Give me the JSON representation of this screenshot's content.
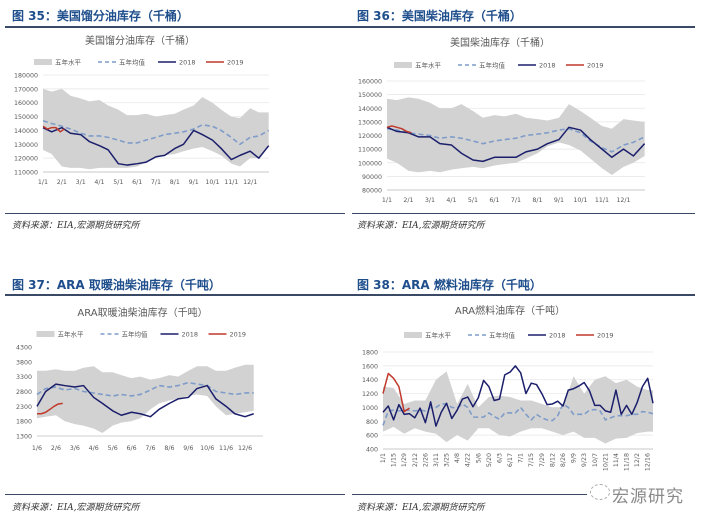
{
  "headers": [
    "图 35：美国馏分油库存（千桶）",
    "图 36：美国柴油库存（千桶）",
    "图 37：ARA 取暖油柴油库存（千吨）",
    "图 38：ARA 燃料油库存（千吨）"
  ],
  "source": "资料来源：EIA,宏源期货研究所",
  "watermark": "宏源研究",
  "colors": {
    "band": "#d2d2d2",
    "avg": "#7f9cc9",
    "y2018": "#1b1f6b",
    "y2019": "#c0392b",
    "header": "#1f4e8c"
  },
  "chart_data": [
    {
      "type": "area+line",
      "title": "美国馏分油库存（千桶）",
      "legend": "top",
      "grid": true,
      "ylim": [
        110000,
        180000
      ],
      "y_ticks": [
        "110000",
        "120000",
        "130000",
        "140000",
        "150000",
        "160000",
        "170000",
        "180000"
      ],
      "x_ticks": [
        "1/1",
        "2/1",
        "3/1",
        "4/1",
        "5/1",
        "6/1",
        "7/1",
        "8/1",
        "9/1",
        "10/1",
        "11/1",
        "12/1"
      ],
      "x": [
        "1/1",
        "1/15",
        "2/1",
        "2/15",
        "3/1",
        "3/15",
        "4/1",
        "4/15",
        "5/1",
        "5/15",
        "6/1",
        "6/15",
        "7/1",
        "7/15",
        "8/1",
        "8/15",
        "9/1",
        "9/15",
        "10/1",
        "10/15",
        "11/1",
        "11/15",
        "12/1",
        "12/15",
        "12/31"
      ],
      "band": {
        "name": "五年水平",
        "upper": [
          170000,
          168000,
          170000,
          165000,
          163000,
          161000,
          162000,
          158000,
          155000,
          151000,
          151000,
          152000,
          150000,
          151000,
          152000,
          155000,
          158000,
          164000,
          160000,
          155000,
          150000,
          149000,
          156000,
          153000,
          153000
        ],
        "lower": [
          126000,
          123000,
          114000,
          113000,
          113000,
          112000,
          113000,
          113000,
          113000,
          113000,
          114000,
          117000,
          120000,
          122000,
          123000,
          125000,
          127000,
          128000,
          125000,
          122000,
          116000,
          114000,
          120000,
          120000,
          128000
        ]
      },
      "series": [
        {
          "name": "五年均值",
          "style": "dashed",
          "values": [
            147000,
            145000,
            143000,
            141000,
            138000,
            136000,
            136000,
            135000,
            133000,
            131000,
            131000,
            133000,
            135000,
            137000,
            138000,
            139000,
            141000,
            144000,
            143000,
            140000,
            135000,
            130000,
            135000,
            136000,
            140000
          ]
        },
        {
          "name": "2018",
          "values": [
            142000,
            139000,
            142000,
            138000,
            137000,
            132000,
            129000,
            126000,
            116000,
            115000,
            116000,
            117000,
            121000,
            122000,
            127000,
            130000,
            140000,
            137000,
            133000,
            127000,
            119000,
            122000,
            125000,
            120000,
            129000
          ]
        },
        {
          "name": "2019",
          "x": [
            "1/1",
            "1/8",
            "1/15",
            "1/22",
            "1/29",
            "2/5"
          ],
          "values": [
            143000,
            141000,
            142000,
            142000,
            139000,
            141000
          ]
        }
      ]
    },
    {
      "type": "area+line",
      "title": "美国柴油库存（千桶）",
      "legend": "top",
      "grid": true,
      "ylim": [
        80000,
        160000
      ],
      "y_ticks": [
        "80000",
        "90000",
        "100000",
        "110000",
        "120000",
        "130000",
        "140000",
        "150000",
        "160000"
      ],
      "x_ticks": [
        "1/1",
        "2/1",
        "3/1",
        "4/1",
        "5/1",
        "6/1",
        "7/1",
        "8/1",
        "9/1",
        "10/1",
        "11/1",
        "12/1"
      ],
      "x": [
        "1/1",
        "1/15",
        "2/1",
        "2/15",
        "3/1",
        "3/15",
        "4/1",
        "4/15",
        "5/1",
        "5/15",
        "6/1",
        "6/15",
        "7/1",
        "7/15",
        "8/1",
        "8/15",
        "9/1",
        "9/15",
        "10/1",
        "10/15",
        "11/1",
        "11/15",
        "12/1",
        "12/15",
        "12/31"
      ],
      "band": {
        "name": "五年水平",
        "upper": [
          147000,
          146000,
          148000,
          147000,
          144000,
          140000,
          140000,
          143000,
          138000,
          133000,
          135000,
          134000,
          136000,
          133000,
          132000,
          131000,
          133000,
          143000,
          138000,
          133000,
          127000,
          125000,
          132000,
          131000,
          130000
        ],
        "lower": [
          103000,
          100000,
          94000,
          93000,
          94000,
          93000,
          95000,
          96000,
          97000,
          96000,
          98000,
          99000,
          100000,
          103000,
          107000,
          112000,
          115000,
          113000,
          109000,
          103000,
          96000,
          91000,
          97000,
          100000,
          105000
        ]
      },
      "series": [
        {
          "name": "五年均值",
          "style": "dashed",
          "values": [
            125000,
            124000,
            122000,
            121000,
            120000,
            118000,
            119000,
            118000,
            116000,
            114000,
            116000,
            117000,
            118000,
            120000,
            121000,
            122000,
            124000,
            125000,
            122000,
            116000,
            111000,
            108000,
            113000,
            115000,
            119000
          ]
        },
        {
          "name": "2018",
          "values": [
            126000,
            123000,
            122000,
            119000,
            119000,
            114000,
            113000,
            107000,
            102000,
            101000,
            104000,
            104000,
            104000,
            108000,
            110000,
            114000,
            117000,
            126000,
            124000,
            117000,
            110000,
            104000,
            110000,
            105000,
            114000
          ]
        },
        {
          "name": "2019",
          "x": [
            "1/1",
            "1/8",
            "1/15",
            "1/22",
            "1/29",
            "2/5"
          ],
          "values": [
            126000,
            127000,
            126000,
            125000,
            123000,
            122000
          ]
        }
      ]
    },
    {
      "type": "area+line",
      "title": "ARA取暖油柴油库存（千吨）",
      "legend": "top",
      "grid": false,
      "ylim": [
        1300,
        4300
      ],
      "y_ticks": [
        "1300",
        "1800",
        "2300",
        "2800",
        "3300",
        "3800",
        "4300"
      ],
      "x_ticks": [
        "1/6",
        "2/6",
        "3/6",
        "4/6",
        "5/6",
        "6/6",
        "7/6",
        "8/6",
        "9/6",
        "10/6",
        "11/6",
        "12/6"
      ],
      "x": [
        "1/6",
        "1/20",
        "2/6",
        "2/20",
        "3/6",
        "3/20",
        "4/6",
        "4/20",
        "5/6",
        "5/20",
        "6/6",
        "6/20",
        "7/6",
        "7/20",
        "8/6",
        "8/20",
        "9/6",
        "9/20",
        "10/6",
        "10/20",
        "11/6",
        "11/20",
        "12/6",
        "12/20"
      ],
      "band": {
        "name": "五年水平",
        "upper": [
          3500,
          3500,
          3550,
          3500,
          3500,
          3600,
          3650,
          3450,
          3450,
          3350,
          3250,
          3300,
          3200,
          3250,
          3350,
          3300,
          3500,
          3650,
          3650,
          3500,
          3500,
          3600,
          3700,
          3700
        ],
        "lower": [
          1900,
          1950,
          2000,
          1800,
          1700,
          1650,
          1550,
          1400,
          1650,
          1750,
          1800,
          1900,
          2200,
          2400,
          2500,
          2550,
          2650,
          2700,
          2650,
          2300,
          2000,
          2050,
          2100,
          2150
        ]
      },
      "series": [
        {
          "name": "五年均值",
          "style": "dashed",
          "values": [
            2700,
            2900,
            2950,
            2850,
            2900,
            2800,
            2750,
            2700,
            2650,
            2700,
            2650,
            2700,
            2850,
            3000,
            2950,
            3000,
            3100,
            3050,
            3000,
            2800,
            2750,
            2700,
            2750,
            2750
          ]
        },
        {
          "name": "2018",
          "values": [
            2300,
            2800,
            3050,
            3000,
            2950,
            3000,
            2600,
            2400,
            2150,
            2000,
            2100,
            2050,
            1950,
            2200,
            2400,
            2550,
            2600,
            2900,
            3000,
            2550,
            2300,
            2050,
            1950,
            2050
          ]
        },
        {
          "name": "2019",
          "x": [
            "1/6",
            "1/13",
            "1/20",
            "1/27",
            "2/3",
            "2/10",
            "2/17"
          ],
          "values": [
            2050,
            2050,
            2100,
            2200,
            2300,
            2380,
            2400
          ]
        }
      ]
    },
    {
      "type": "area+line",
      "title": "ARA燃料油库存（千吨）",
      "legend": "top",
      "grid": true,
      "ylim": [
        400,
        1800
      ],
      "y_ticks": [
        "400",
        "600",
        "800",
        "1000",
        "1200",
        "1400",
        "1600",
        "1800"
      ],
      "x_ticks": [
        "1/1",
        "1/15",
        "1/29",
        "2/12",
        "2/26",
        "3/11",
        "3/25",
        "4/8",
        "4/22",
        "5/6",
        "5/20",
        "6/3",
        "6/17",
        "7/1",
        "7/15",
        "7/29",
        "8/12",
        "8/26",
        "9/9",
        "9/23",
        "10/7",
        "10/21",
        "11/4",
        "11/18",
        "12/2",
        "12/16"
      ],
      "frequency": "weekly",
      "band": {
        "name": "五年水平",
        "upper": [
          1300,
          1280,
          1050,
          1100,
          1100,
          1400,
          1520,
          1050,
          1340,
          1000,
          1150,
          1170,
          1150,
          1100,
          1100,
          1050,
          1000,
          1000,
          1450,
          1200,
          1400,
          1450,
          1350,
          1400,
          1300,
          1250
        ],
        "lower": [
          650,
          720,
          620,
          700,
          650,
          620,
          500,
          600,
          520,
          700,
          700,
          600,
          580,
          650,
          700,
          700,
          650,
          600,
          650,
          560,
          560,
          480,
          550,
          560,
          630,
          650
        ]
      },
      "series": [
        {
          "name": "五年均值",
          "style": "dashed",
          "values": [
            740,
            950,
            960,
            950,
            960,
            960,
            950,
            960,
            950,
            1000,
            1000,
            1050,
            1050,
            1000,
            990,
            1050,
            1000,
            860,
            860,
            860,
            920,
            870,
            830,
            920,
            920,
            920,
            1000,
            900,
            820,
            900,
            850,
            820,
            810,
            880,
            1050,
            1000,
            900,
            900,
            900,
            960,
            970,
            950,
            820,
            850,
            880,
            880,
            880,
            900,
            900,
            940,
            930,
            910
          ]
        },
        {
          "name": "2018",
          "values": [
            930,
            1020,
            820,
            1040,
            900,
            910,
            850,
            990,
            780,
            1080,
            730,
            930,
            1060,
            840,
            960,
            1120,
            1150,
            1010,
            1140,
            1390,
            1300,
            1100,
            1120,
            1470,
            1510,
            1600,
            1500,
            1200,
            1350,
            1330,
            1200,
            1040,
            1050,
            1090,
            1020,
            1250,
            1270,
            1310,
            1360,
            1240,
            1030,
            1030,
            950,
            930,
            1250,
            900,
            1030,
            900,
            1070,
            1300,
            1420,
            1060
          ]
        },
        {
          "name": "2019",
          "values": [
            1200,
            1490,
            1420,
            1300,
            940,
            990
          ]
        }
      ]
    }
  ]
}
